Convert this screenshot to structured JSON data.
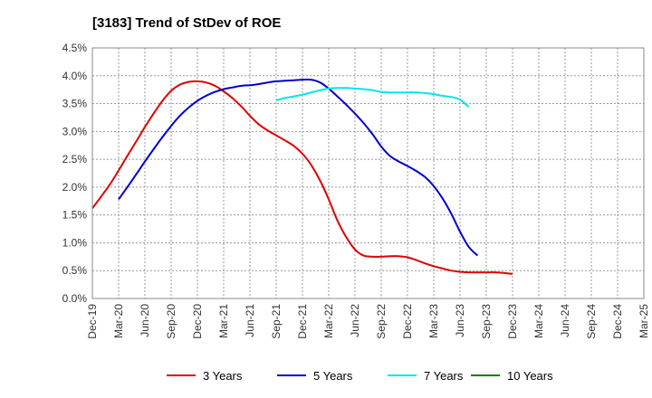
{
  "chart_data": {
    "type": "line",
    "title": "[3183]  Trend of StDev of ROE",
    "xlabel": "",
    "ylabel": "",
    "ylim": [
      0,
      4.5
    ],
    "y_ticks": [
      "0.0%",
      "0.5%",
      "1.0%",
      "1.5%",
      "2.0%",
      "2.5%",
      "3.0%",
      "3.5%",
      "4.0%",
      "4.5%"
    ],
    "x_ticks": [
      "Dec-19",
      "Mar-20",
      "Jun-20",
      "Sep-20",
      "Dec-20",
      "Mar-21",
      "Jun-21",
      "Sep-21",
      "Dec-21",
      "Mar-22",
      "Jun-22",
      "Sep-22",
      "Dec-22",
      "Mar-23",
      "Jun-23",
      "Sep-23",
      "Dec-23",
      "Mar-24",
      "Jun-24",
      "Sep-24",
      "Dec-24",
      "Mar-25"
    ],
    "grid": true,
    "legend_position": "bottom",
    "series": [
      {
        "name": "3 Years",
        "color": "#e00000",
        "points": [
          [
            0,
            1.62
          ],
          [
            0.33,
            1.83
          ],
          [
            0.67,
            2.05
          ],
          [
            1,
            2.3
          ],
          [
            1.33,
            2.56
          ],
          [
            1.67,
            2.82
          ],
          [
            2,
            3.08
          ],
          [
            2.33,
            3.32
          ],
          [
            2.67,
            3.55
          ],
          [
            3,
            3.73
          ],
          [
            3.33,
            3.84
          ],
          [
            3.67,
            3.89
          ],
          [
            4,
            3.9
          ],
          [
            4.33,
            3.88
          ],
          [
            4.67,
            3.82
          ],
          [
            5,
            3.72
          ],
          [
            5.33,
            3.6
          ],
          [
            5.67,
            3.45
          ],
          [
            6,
            3.28
          ],
          [
            6.33,
            3.13
          ],
          [
            6.67,
            3.02
          ],
          [
            7,
            2.93
          ],
          [
            7.33,
            2.84
          ],
          [
            7.67,
            2.74
          ],
          [
            8,
            2.6
          ],
          [
            8.33,
            2.4
          ],
          [
            8.67,
            2.12
          ],
          [
            9,
            1.78
          ],
          [
            9.33,
            1.4
          ],
          [
            9.67,
            1.1
          ],
          [
            10,
            0.88
          ],
          [
            10.33,
            0.77
          ],
          [
            10.67,
            0.75
          ],
          [
            11,
            0.75
          ],
          [
            11.33,
            0.76
          ],
          [
            11.67,
            0.76
          ],
          [
            12,
            0.74
          ],
          [
            12.33,
            0.69
          ],
          [
            12.67,
            0.63
          ],
          [
            13,
            0.58
          ],
          [
            13.33,
            0.54
          ],
          [
            13.67,
            0.5
          ],
          [
            14,
            0.48
          ],
          [
            14.33,
            0.47
          ],
          [
            14.67,
            0.47
          ],
          [
            15,
            0.47
          ],
          [
            15.33,
            0.47
          ],
          [
            15.67,
            0.46
          ],
          [
            16,
            0.44
          ]
        ]
      },
      {
        "name": "5 Years",
        "color": "#0000cc",
        "points": [
          [
            1,
            1.78
          ],
          [
            1.33,
            2.0
          ],
          [
            1.67,
            2.23
          ],
          [
            2,
            2.46
          ],
          [
            2.33,
            2.68
          ],
          [
            2.67,
            2.9
          ],
          [
            3,
            3.1
          ],
          [
            3.33,
            3.28
          ],
          [
            3.67,
            3.43
          ],
          [
            4,
            3.55
          ],
          [
            4.33,
            3.64
          ],
          [
            4.67,
            3.71
          ],
          [
            5,
            3.76
          ],
          [
            5.33,
            3.79
          ],
          [
            5.67,
            3.82
          ],
          [
            6,
            3.83
          ],
          [
            6.33,
            3.85
          ],
          [
            6.67,
            3.88
          ],
          [
            7,
            3.9
          ],
          [
            7.33,
            3.91
          ],
          [
            7.67,
            3.92
          ],
          [
            8,
            3.93
          ],
          [
            8.33,
            3.93
          ],
          [
            8.67,
            3.88
          ],
          [
            9,
            3.77
          ],
          [
            9.33,
            3.63
          ],
          [
            9.67,
            3.48
          ],
          [
            10,
            3.32
          ],
          [
            10.33,
            3.15
          ],
          [
            10.67,
            2.95
          ],
          [
            11,
            2.73
          ],
          [
            11.33,
            2.56
          ],
          [
            11.67,
            2.46
          ],
          [
            12,
            2.38
          ],
          [
            12.33,
            2.29
          ],
          [
            12.67,
            2.18
          ],
          [
            13,
            2.02
          ],
          [
            13.33,
            1.8
          ],
          [
            13.67,
            1.52
          ],
          [
            14,
            1.2
          ],
          [
            14.33,
            0.93
          ],
          [
            14.67,
            0.77
          ]
        ]
      },
      {
        "name": "7 Years",
        "color": "#00e5ee",
        "points": [
          [
            7,
            3.56
          ],
          [
            7.33,
            3.6
          ],
          [
            7.67,
            3.63
          ],
          [
            8,
            3.66
          ],
          [
            8.33,
            3.7
          ],
          [
            8.67,
            3.74
          ],
          [
            9,
            3.77
          ],
          [
            9.33,
            3.78
          ],
          [
            9.67,
            3.78
          ],
          [
            10,
            3.77
          ],
          [
            10.33,
            3.76
          ],
          [
            10.67,
            3.74
          ],
          [
            11,
            3.71
          ],
          [
            11.33,
            3.7
          ],
          [
            11.67,
            3.7
          ],
          [
            12,
            3.7
          ],
          [
            12.33,
            3.7
          ],
          [
            12.67,
            3.69
          ],
          [
            13,
            3.67
          ],
          [
            13.33,
            3.64
          ],
          [
            13.67,
            3.62
          ],
          [
            14,
            3.57
          ],
          [
            14.33,
            3.44
          ]
        ]
      },
      {
        "name": "10 Years",
        "color": "#008000",
        "points": []
      }
    ]
  }
}
